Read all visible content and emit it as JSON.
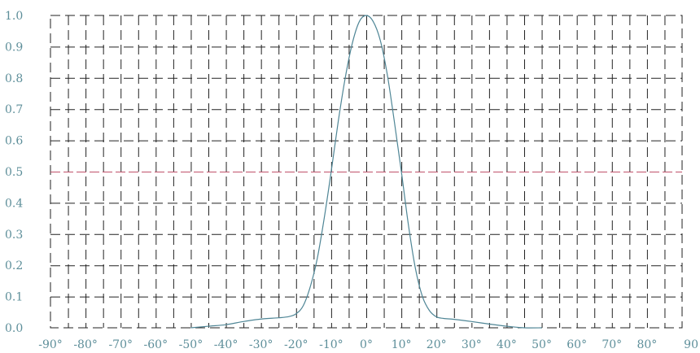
{
  "chart_data": {
    "type": "line",
    "title": "",
    "xlabel": "",
    "ylabel": "",
    "xlim": [
      -90,
      90
    ],
    "ylim": [
      0,
      1
    ],
    "grid": true,
    "x_ticks": [
      -90,
      -80,
      -70,
      -60,
      -50,
      -40,
      -30,
      -20,
      -10,
      0,
      10,
      20,
      30,
      40,
      50,
      60,
      70,
      80,
      90
    ],
    "x_tick_labels": [
      "-90°",
      "-80°",
      "-70°",
      "-60°",
      "-50°",
      "-40°",
      "-30°",
      "-20°",
      "-10°",
      "0°",
      "10°",
      "20°",
      "30°",
      "40°",
      "50°",
      "60°",
      "70°",
      "80°",
      "90"
    ],
    "y_ticks": [
      0,
      0.1,
      0.2,
      0.3,
      0.4,
      0.5,
      0.6,
      0.7,
      0.8,
      0.9,
      1.0
    ],
    "y_tick_labels": [
      "0.0",
      "0.1",
      "0.2",
      "0.3",
      "0.4",
      "0.5",
      "0.6",
      "0.7",
      "0.8",
      "0.9",
      "1.0"
    ],
    "reference_line": {
      "y": 0.5,
      "color": "#c0506a"
    },
    "series": [
      {
        "color": "#4f8696",
        "x": [
          -50,
          -45,
          -40,
          -35,
          -30,
          -25,
          -22,
          -20,
          -18,
          -16,
          -14,
          -12,
          -10,
          -8,
          -6,
          -4,
          -2,
          0,
          2,
          4,
          6,
          8,
          10,
          12,
          14,
          16,
          18,
          20,
          22,
          25,
          30,
          35,
          40,
          45,
          50
        ],
        "y": [
          0.0,
          0.005,
          0.01,
          0.02,
          0.028,
          0.032,
          0.036,
          0.045,
          0.07,
          0.13,
          0.22,
          0.35,
          0.5,
          0.66,
          0.8,
          0.91,
          0.98,
          1.0,
          0.98,
          0.92,
          0.81,
          0.66,
          0.5,
          0.33,
          0.19,
          0.1,
          0.055,
          0.035,
          0.03,
          0.027,
          0.02,
          0.012,
          0.005,
          0.0,
          0.0
        ]
      }
    ],
    "colors": {
      "grid": "#222222",
      "tick_text": "#5e8f9a"
    }
  }
}
